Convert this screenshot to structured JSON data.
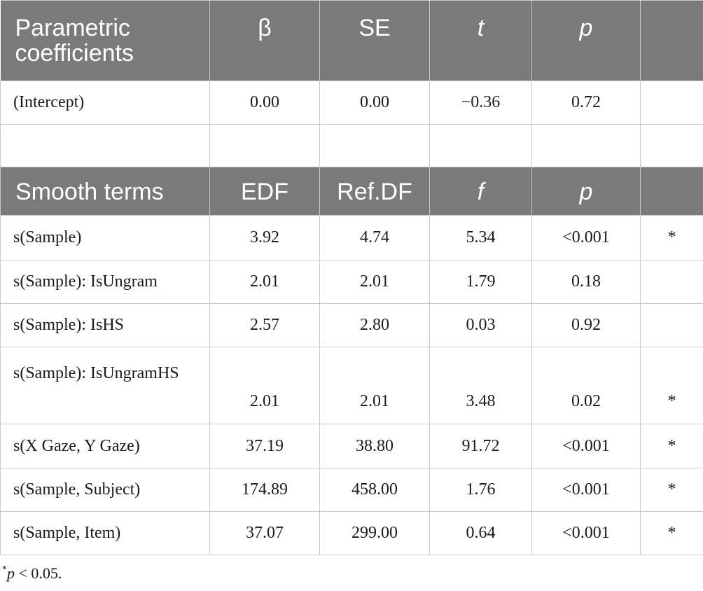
{
  "parametric_header": {
    "label": "Parametric coefficients",
    "col1": "β",
    "col2": "SE",
    "col3": "t",
    "col4": "p",
    "col5": ""
  },
  "parametric_rows": [
    {
      "term": "(Intercept)",
      "c1": "0.00",
      "c2": "0.00",
      "c3": "−0.36",
      "c4": "0.72",
      "c5": ""
    }
  ],
  "smooth_header": {
    "label": "Smooth terms",
    "col1": "EDF",
    "col2": "Ref.DF",
    "col3": "f",
    "col4": "p",
    "col5": ""
  },
  "smooth_rows": [
    {
      "term": "s(Sample)",
      "c1": "3.92",
      "c2": "4.74",
      "c3": "5.34",
      "c4": "<0.001",
      "c5": "*"
    },
    {
      "term": "s(Sample): IsUngram",
      "c1": "2.01",
      "c2": "2.01",
      "c3": "1.79",
      "c4": "0.18",
      "c5": ""
    },
    {
      "term": "s(Sample): IsHS",
      "c1": "2.57",
      "c2": "2.80",
      "c3": "0.03",
      "c4": "0.92",
      "c5": ""
    },
    {
      "term": "s(Sample): IsUngramHS",
      "c1": "2.01",
      "c2": "2.01",
      "c3": "3.48",
      "c4": "0.02",
      "c5": "*"
    },
    {
      "term": "s(X Gaze, Y Gaze)",
      "c1": "37.19",
      "c2": "38.80",
      "c3": "91.72",
      "c4": "<0.001",
      "c5": "*"
    },
    {
      "term": "s(Sample, Subject)",
      "c1": "174.89",
      "c2": "458.00",
      "c3": "1.76",
      "c4": "<0.001",
      "c5": "*"
    },
    {
      "term": "s(Sample, Item)",
      "c1": "37.07",
      "c2": "299.00",
      "c3": "0.64",
      "c4": "<0.001",
      "c5": "*"
    }
  ],
  "footnote": {
    "star": "*",
    "p": "p",
    "rest": " < 0.05."
  }
}
